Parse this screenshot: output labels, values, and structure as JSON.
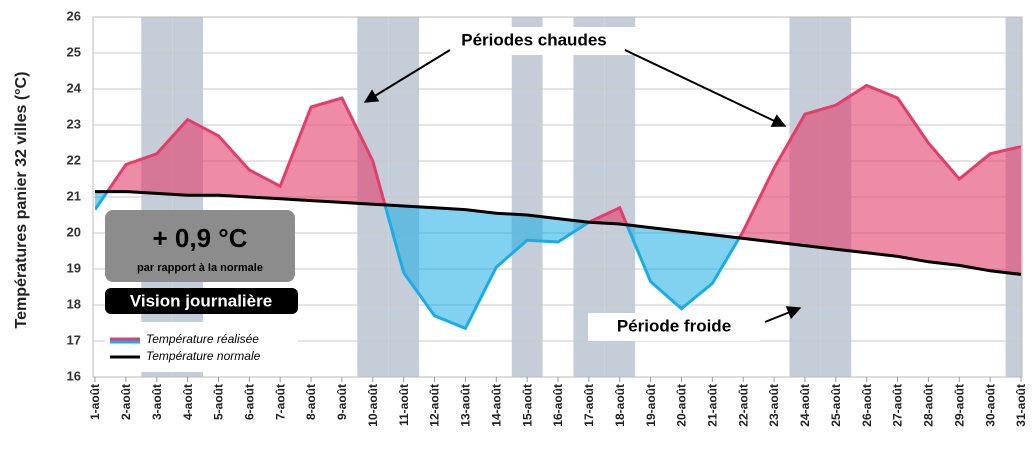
{
  "chart_data": {
    "type": "line",
    "y_label": "Températures panier 32 villes (°C)",
    "categories": [
      "1-août",
      "2-août",
      "3-août",
      "4-août",
      "5-août",
      "6-août",
      "7-août",
      "8-août",
      "9-août",
      "10-août",
      "11-août",
      "12-août",
      "13-août",
      "14-août",
      "15-août",
      "16-août",
      "17-août",
      "18-août",
      "19-août",
      "20-août",
      "21-août",
      "22-août",
      "23-août",
      "24-août",
      "25-août",
      "26-août",
      "27-août",
      "28-août",
      "29-août",
      "30-août",
      "31-août"
    ],
    "series": [
      {
        "name": "Température réalisée",
        "color": "#e33d6c",
        "below_color": "#1aace4",
        "values": [
          20.65,
          21.9,
          22.2,
          23.15,
          22.7,
          21.75,
          21.3,
          23.5,
          23.75,
          22.0,
          18.9,
          17.7,
          17.35,
          19.05,
          19.8,
          19.75,
          20.3,
          20.7,
          18.65,
          17.9,
          18.6,
          20.05,
          21.8,
          23.3,
          23.55,
          24.1,
          23.75,
          22.5,
          21.5,
          22.2,
          22.4
        ]
      },
      {
        "name": "Température normale",
        "color": "#000000",
        "values": [
          21.15,
          21.15,
          21.1,
          21.05,
          21.05,
          21.0,
          20.95,
          20.9,
          20.85,
          20.8,
          20.75,
          20.7,
          20.65,
          20.55,
          20.5,
          20.4,
          20.3,
          20.25,
          20.15,
          20.05,
          19.95,
          19.85,
          19.75,
          19.65,
          19.55,
          19.45,
          19.35,
          19.2,
          19.1,
          18.95,
          18.85
        ]
      }
    ],
    "ylim": [
      16,
      26
    ],
    "yticks": [
      16,
      17,
      18,
      19,
      20,
      21,
      22,
      23,
      24,
      25,
      26
    ],
    "grid": true,
    "annotations": {
      "warm": "Périodes chaudes",
      "cold": "Période froide",
      "delta": "+ 0,9 °C",
      "delta_note": "par rapport à la normale",
      "view": "Vision journalière"
    }
  }
}
